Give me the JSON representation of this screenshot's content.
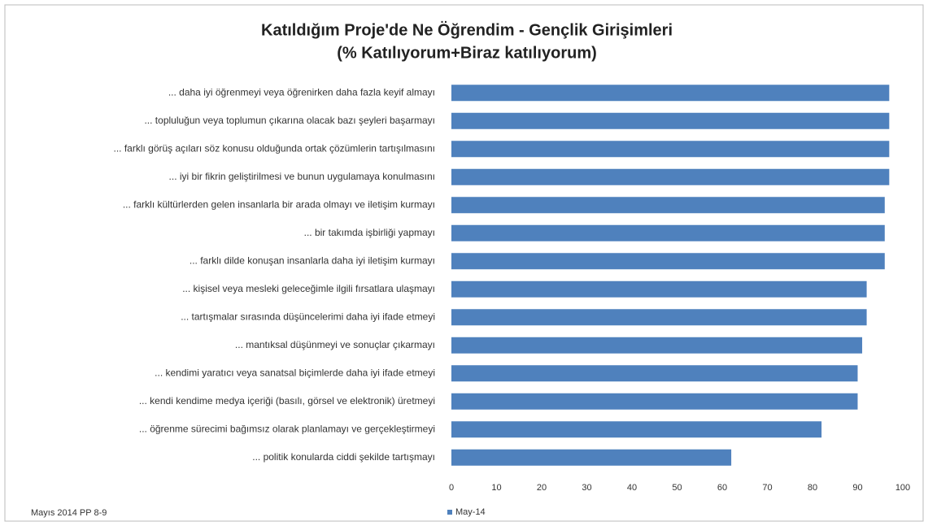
{
  "chart_data": {
    "type": "bar",
    "orientation": "horizontal",
    "title": "Katıldığım Proje'de Ne Öğrendim - Gençlik Girişimleri",
    "subtitle": "(% Katılıyorum+Biraz katılıyorum)",
    "categories": [
      "... daha iyi öğrenmeyi veya öğrenirken daha fazla keyif almayı",
      "... topluluğun veya toplumun çıkarına olacak bazı şeyleri başarmayı",
      "... farklı görüş açıları söz konusu olduğunda ortak çözümlerin tartışılmasını",
      "... iyi bir fikrin geliştirilmesi ve bunun uygulamaya konulmasını",
      "... farklı kültürlerden gelen insanlarla bir arada olmayı ve iletişim kurmayı",
      "... bir takımda işbirliği yapmayı",
      "... farklı dilde konuşan insanlarla daha iyi iletişim kurmayı",
      "... kişisel veya mesleki geleceğimle ilgili fırsatlara ulaşmayı",
      "... tartışmalar sırasında düşüncelerimi daha iyi ifade etmeyi",
      "... mantıksal düşünmeyi ve sonuçlar çıkarmayı",
      "... kendimi yaratıcı veya sanatsal biçimlerde daha iyi ifade etmeyi",
      "... kendi kendime medya içeriği (basılı, görsel ve elektronik) üretmeyi",
      "... öğrenme sürecimi bağımsız olarak planlamayı ve gerçekleştirmeyi",
      "... politik konularda ciddi şekilde tartışmayı"
    ],
    "series": [
      {
        "name": "May-14",
        "color": "#4f81bd",
        "values": [
          97,
          97,
          97,
          97,
          96,
          96,
          96,
          92,
          92,
          91,
          90,
          90,
          82,
          62
        ]
      }
    ],
    "xlim": [
      0,
      100
    ],
    "xticks": [
      0,
      10,
      20,
      30,
      40,
      50,
      60,
      70,
      80,
      90,
      100
    ],
    "grid": false,
    "legend": "bottom",
    "footnote": "Mayıs 2014 PP 8-9"
  }
}
